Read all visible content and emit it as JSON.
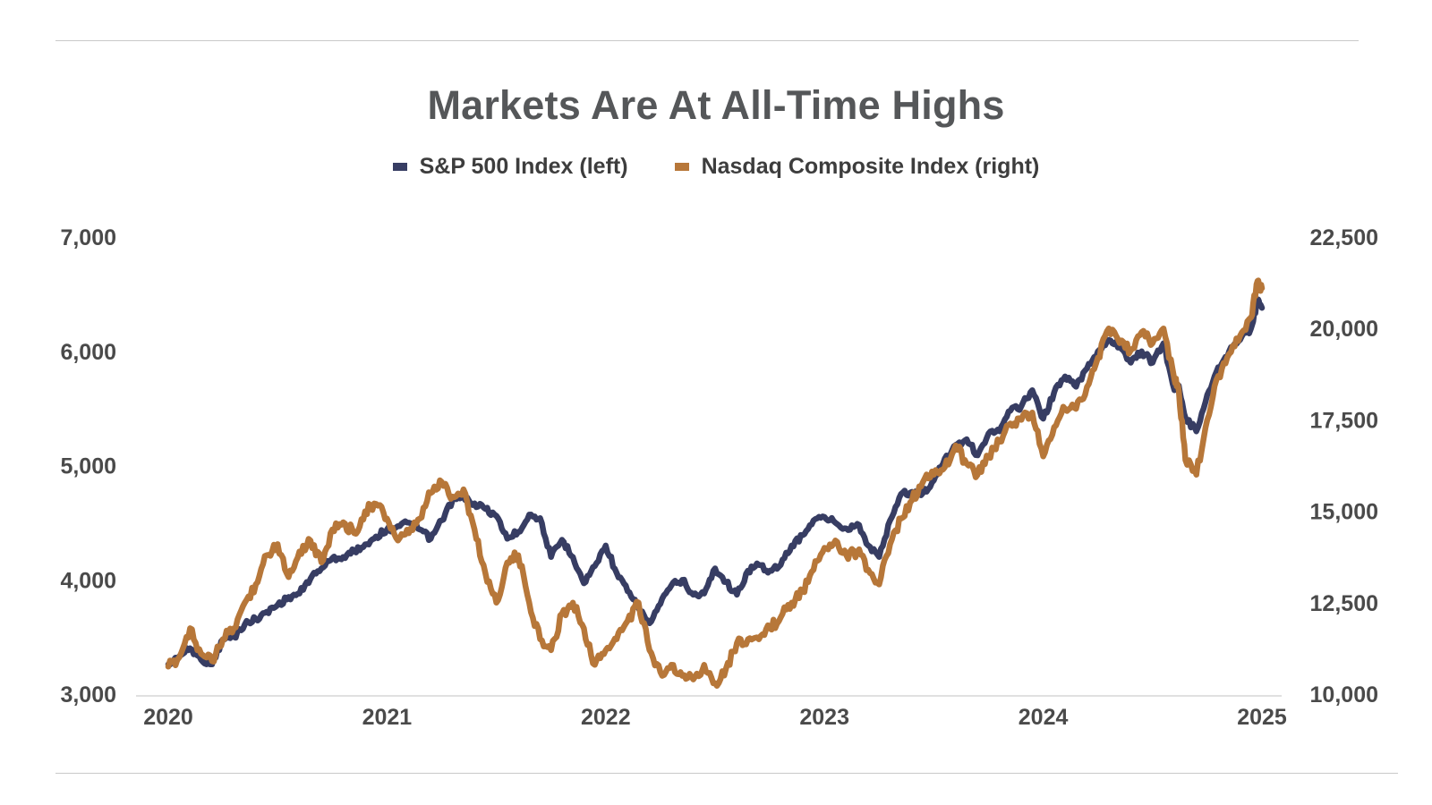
{
  "chart_data": {
    "type": "line",
    "title": "Markets Are At All-Time Highs",
    "x_tick_labels": [
      "2020",
      "2021",
      "2022",
      "2023",
      "2024",
      "2025"
    ],
    "x_range": [
      2020.0,
      2025.0
    ],
    "y_left_range": [
      3000,
      7000
    ],
    "y_left_tick_labels": [
      "3,000",
      "4,000",
      "5,000",
      "6,000",
      "7,000"
    ],
    "y_left_ticks": [
      3000,
      4000,
      5000,
      6000,
      7000
    ],
    "y_right_range": [
      10000,
      22500
    ],
    "y_right_tick_labels": [
      "10,000",
      "12,500",
      "15,000",
      "17,500",
      "20,000",
      "22,500"
    ],
    "y_right_ticks": [
      10000,
      12500,
      15000,
      17500,
      20000,
      22500
    ],
    "grid": false,
    "legend_position": "top-center",
    "series": [
      {
        "name": "S&P 500 Index (left)",
        "axis": "left",
        "color": "#373d63",
        "x": [
          2020.0,
          2020.05,
          2020.1,
          2020.15,
          2020.2,
          2020.25,
          2020.3,
          2020.35,
          2020.4,
          2020.45,
          2020.5,
          2020.55,
          2020.6,
          2020.65,
          2020.7,
          2020.75,
          2020.8,
          2020.85,
          2020.9,
          2020.95,
          2021.0,
          2021.05,
          2021.1,
          2021.15,
          2021.2,
          2021.25,
          2021.3,
          2021.35,
          2021.4,
          2021.45,
          2021.5,
          2021.55,
          2021.6,
          2021.65,
          2021.7,
          2021.75,
          2021.8,
          2021.85,
          2021.9,
          2021.95,
          2022.0,
          2022.05,
          2022.1,
          2022.15,
          2022.2,
          2022.25,
          2022.3,
          2022.35,
          2022.4,
          2022.45,
          2022.5,
          2022.55,
          2022.6,
          2022.65,
          2022.7,
          2022.75,
          2022.8,
          2022.85,
          2022.9,
          2022.95,
          2023.0,
          2023.05,
          2023.1,
          2023.15,
          2023.2,
          2023.25,
          2023.3,
          2023.35,
          2023.4,
          2023.45,
          2023.5,
          2023.55,
          2023.6,
          2023.65,
          2023.7,
          2023.75,
          2023.8,
          2023.85,
          2023.9,
          2023.95,
          2024.0,
          2024.05,
          2024.1,
          2024.15,
          2024.2,
          2024.25,
          2024.3,
          2024.35,
          2024.4,
          2024.45,
          2024.5,
          2024.55,
          2024.6,
          2024.62,
          2024.65,
          2024.7,
          2024.75,
          2024.8,
          2024.85,
          2024.9,
          2024.95,
          2024.98,
          2025.0
        ],
        "values": [
          3260,
          3330,
          3400,
          3300,
          3260,
          3480,
          3500,
          3610,
          3660,
          3720,
          3780,
          3850,
          3880,
          4010,
          4100,
          4190,
          4200,
          4250,
          4310,
          4380,
          4440,
          4470,
          4500,
          4440,
          4360,
          4520,
          4700,
          4720,
          4670,
          4620,
          4560,
          4360,
          4420,
          4570,
          4540,
          4200,
          4350,
          4200,
          3970,
          4120,
          4300,
          4060,
          3900,
          3750,
          3620,
          3790,
          3950,
          4000,
          3870,
          3880,
          4100,
          3980,
          3870,
          4080,
          4130,
          4080,
          4130,
          4300,
          4390,
          4520,
          4550,
          4500,
          4450,
          4490,
          4300,
          4200,
          4520,
          4750,
          4770,
          4760,
          4870,
          5060,
          5180,
          5230,
          5090,
          5280,
          5300,
          5480,
          5520,
          5660,
          5410,
          5640,
          5780,
          5690,
          5850,
          6000,
          6100,
          6050,
          5900,
          6000,
          5900,
          6070,
          5660,
          5700,
          5420,
          5300,
          5620,
          5860,
          6000,
          6100,
          6200,
          6440,
          6380
        ]
      },
      {
        "name": "Nasdaq Composite Index (right)",
        "axis": "right",
        "color": "#b77739",
        "x": [
          2020.0,
          2020.05,
          2020.1,
          2020.15,
          2020.2,
          2020.25,
          2020.3,
          2020.35,
          2020.4,
          2020.45,
          2020.5,
          2020.55,
          2020.6,
          2020.65,
          2020.7,
          2020.75,
          2020.8,
          2020.85,
          2020.9,
          2020.95,
          2021.0,
          2021.05,
          2021.1,
          2021.15,
          2021.2,
          2021.25,
          2021.3,
          2021.35,
          2021.4,
          2021.45,
          2021.5,
          2021.55,
          2021.6,
          2021.65,
          2021.7,
          2021.75,
          2021.8,
          2021.85,
          2021.9,
          2021.95,
          2022.0,
          2022.05,
          2022.1,
          2022.15,
          2022.2,
          2022.25,
          2022.3,
          2022.35,
          2022.4,
          2022.45,
          2022.5,
          2022.55,
          2022.6,
          2022.65,
          2022.7,
          2022.75,
          2022.8,
          2022.85,
          2022.9,
          2022.95,
          2023.0,
          2023.05,
          2023.1,
          2023.15,
          2023.2,
          2023.25,
          2023.3,
          2023.35,
          2023.4,
          2023.45,
          2023.5,
          2023.55,
          2023.6,
          2023.65,
          2023.7,
          2023.75,
          2023.8,
          2023.85,
          2023.9,
          2023.95,
          2024.0,
          2024.05,
          2024.1,
          2024.15,
          2024.2,
          2024.25,
          2024.3,
          2024.35,
          2024.4,
          2024.45,
          2024.5,
          2024.55,
          2024.6,
          2024.62,
          2024.65,
          2024.7,
          2024.75,
          2024.8,
          2024.85,
          2024.9,
          2024.95,
          2024.98,
          2025.0
        ],
        "values": [
          10750,
          11000,
          11800,
          11100,
          10900,
          11500,
          11800,
          12500,
          13000,
          13800,
          14100,
          13200,
          13900,
          14200,
          13600,
          14500,
          14700,
          14400,
          15000,
          15200,
          14800,
          14200,
          14400,
          14800,
          15500,
          15800,
          15400,
          15600,
          14500,
          13300,
          12500,
          13600,
          13800,
          12500,
          11500,
          11200,
          12200,
          12500,
          11800,
          10800,
          11200,
          11500,
          12000,
          12500,
          11200,
          10600,
          10800,
          10500,
          10400,
          10800,
          10300,
          10700,
          11400,
          11500,
          11500,
          11800,
          12100,
          12500,
          12800,
          13400,
          14000,
          14200,
          13800,
          13900,
          13400,
          13000,
          14100,
          14800,
          15300,
          15800,
          16000,
          16200,
          16800,
          16300,
          16000,
          16500,
          16900,
          17400,
          17500,
          17700,
          16500,
          17300,
          17800,
          17800,
          18400,
          19200,
          20000,
          19600,
          19400,
          19900,
          19600,
          20000,
          18600,
          18300,
          16400,
          16000,
          17500,
          18700,
          19300,
          19800,
          20300,
          21300,
          21100
        ]
      }
    ]
  }
}
